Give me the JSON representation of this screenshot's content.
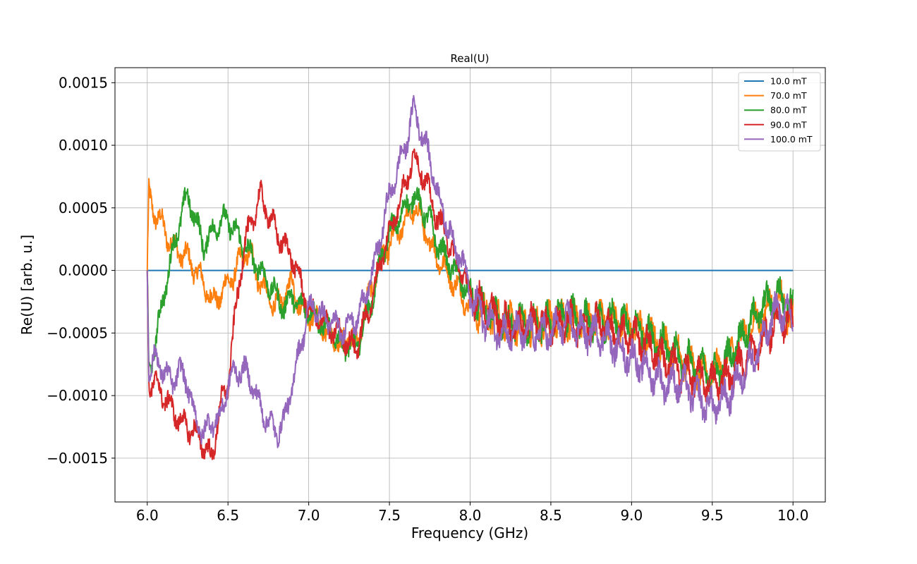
{
  "chart_data": {
    "type": "line",
    "title": "Real(U)",
    "xlabel": "Frequency (GHz)",
    "ylabel": "Re(U) [arb. u.]",
    "xlim": [
      5.8,
      10.2
    ],
    "ylim": [
      -0.00185,
      0.00162
    ],
    "xticks": [
      6.0,
      6.5,
      7.0,
      7.5,
      8.0,
      8.5,
      9.0,
      9.5,
      10.0
    ],
    "xtick_labels": [
      "6.0",
      "6.5",
      "7.0",
      "7.5",
      "8.0",
      "8.5",
      "9.0",
      "9.5",
      "10.0"
    ],
    "yticks": [
      0.0015,
      0.001,
      0.0005,
      0.0,
      -0.0005,
      -0.001,
      -0.0015
    ],
    "ytick_labels": [
      "0.0015",
      "0.0010",
      "0.0005",
      "0.0000",
      "−0.0005",
      "−0.0010",
      "−0.0015"
    ],
    "grid": true,
    "legend_position": "top-right",
    "series": [
      {
        "name": "10.0 mT",
        "color": "#1f77b4",
        "x": [
          6.0,
          10.0
        ],
        "y": [
          0.0,
          0.0
        ]
      },
      {
        "name": "70.0 mT",
        "color": "#ff7f0e",
        "x": [
          6.0,
          6.01,
          6.05,
          6.1,
          6.15,
          6.2,
          6.25,
          6.3,
          6.35,
          6.4,
          6.45,
          6.5,
          6.55,
          6.6,
          6.65,
          6.7,
          6.75,
          6.8,
          6.85,
          6.9,
          6.95,
          7.0,
          7.05,
          7.1,
          7.15,
          7.2,
          7.25,
          7.3,
          7.35,
          7.4,
          7.45,
          7.5,
          7.55,
          7.6,
          7.65,
          7.7,
          7.75,
          7.8,
          7.85,
          7.9,
          7.95,
          8.0,
          8.1,
          8.2,
          8.3,
          8.4,
          8.5,
          8.6,
          8.7,
          8.8,
          8.9,
          9.0,
          9.1,
          9.2,
          9.3,
          9.4,
          9.5,
          9.6,
          9.7,
          9.8,
          9.9,
          10.0
        ],
        "y": [
          0.0,
          0.0006,
          0.00045,
          0.00035,
          0.0002,
          0.00015,
          0.0001,
          0.0,
          -0.0001,
          -0.00025,
          -0.0002,
          -0.0001,
          0.0,
          0.00015,
          0.0001,
          -0.0001,
          -0.0002,
          -0.0003,
          -0.0002,
          -0.0001,
          -0.0003,
          -0.00035,
          -0.0004,
          -0.0005,
          -0.00055,
          -0.0006,
          -0.0005,
          -0.0006,
          -0.0003,
          -0.0001,
          0.0001,
          0.0002,
          0.0003,
          0.0004,
          0.0005,
          0.0004,
          0.0002,
          0.0001,
          0.0,
          -0.0001,
          -0.0002,
          -0.0003,
          -0.00035,
          -0.0004,
          -0.00045,
          -0.00045,
          -0.0004,
          -0.0004,
          -0.0004,
          -0.0004,
          -0.0004,
          -0.00045,
          -0.0005,
          -0.0006,
          -0.0007,
          -0.0008,
          -0.00085,
          -0.0007,
          -0.0005,
          -0.0004,
          -0.0002,
          -0.0004
        ]
      },
      {
        "name": "80.0 mT",
        "color": "#2ca02c",
        "x": [
          6.0,
          6.01,
          6.05,
          6.1,
          6.15,
          6.2,
          6.25,
          6.3,
          6.35,
          6.4,
          6.45,
          6.5,
          6.55,
          6.6,
          6.65,
          6.7,
          6.75,
          6.8,
          6.85,
          6.9,
          6.95,
          7.0,
          7.05,
          7.1,
          7.15,
          7.2,
          7.25,
          7.3,
          7.35,
          7.4,
          7.45,
          7.5,
          7.55,
          7.6,
          7.65,
          7.7,
          7.75,
          7.8,
          7.85,
          7.9,
          7.95,
          8.0,
          8.1,
          8.2,
          8.3,
          8.4,
          8.5,
          8.6,
          8.7,
          8.8,
          8.9,
          9.0,
          9.1,
          9.2,
          9.3,
          9.4,
          9.5,
          9.6,
          9.7,
          9.8,
          9.9,
          10.0
        ],
        "y": [
          0.0,
          -0.0008,
          -0.0006,
          -0.0002,
          0.0001,
          0.0004,
          0.0006,
          0.0004,
          0.0002,
          0.0003,
          0.0004,
          0.0004,
          0.0003,
          0.0002,
          0.0001,
          0.0,
          -0.0001,
          -0.0002,
          -0.0003,
          -0.0002,
          -0.0003,
          -0.0003,
          -0.0004,
          -0.00045,
          -0.0005,
          -0.0006,
          -0.0006,
          -0.0006,
          -0.0004,
          -0.0002,
          0.0001,
          0.0003,
          0.0004,
          0.0005,
          0.0006,
          0.0005,
          0.0004,
          0.0002,
          0.0001,
          0.0,
          -0.0001,
          -0.0002,
          -0.00035,
          -0.0004,
          -0.0004,
          -0.00045,
          -0.0004,
          -0.00035,
          -0.0004,
          -0.0004,
          -0.0004,
          -0.00045,
          -0.0005,
          -0.0006,
          -0.0007,
          -0.00075,
          -0.00085,
          -0.0007,
          -0.0005,
          -0.0003,
          -0.0002,
          -0.0003
        ]
      },
      {
        "name": "90.0 mT",
        "color": "#d62728",
        "x": [
          6.0,
          6.01,
          6.05,
          6.1,
          6.15,
          6.2,
          6.25,
          6.3,
          6.35,
          6.4,
          6.45,
          6.5,
          6.55,
          6.6,
          6.65,
          6.7,
          6.75,
          6.8,
          6.85,
          6.9,
          6.95,
          7.0,
          7.05,
          7.1,
          7.15,
          7.2,
          7.25,
          7.3,
          7.35,
          7.4,
          7.45,
          7.5,
          7.55,
          7.6,
          7.65,
          7.7,
          7.75,
          7.8,
          7.85,
          7.9,
          7.95,
          8.0,
          8.1,
          8.2,
          8.3,
          8.4,
          8.5,
          8.6,
          8.7,
          8.8,
          8.9,
          9.0,
          9.1,
          9.2,
          9.3,
          9.4,
          9.5,
          9.6,
          9.7,
          9.8,
          9.9,
          10.0
        ],
        "y": [
          0.0,
          -0.0009,
          -0.0009,
          -0.001,
          -0.0011,
          -0.0012,
          -0.00125,
          -0.0013,
          -0.0014,
          -0.0015,
          -0.0011,
          -0.0009,
          -0.0003,
          0.0002,
          0.0004,
          0.0006,
          0.00045,
          0.0003,
          0.0002,
          0.0001,
          -0.0001,
          -0.0003,
          -0.0004,
          -0.0004,
          -0.0005,
          -0.0005,
          -0.0006,
          -0.0006,
          -0.0004,
          -0.0002,
          0.0001,
          0.0003,
          0.0005,
          0.0007,
          0.0009,
          0.0008,
          0.0006,
          0.0004,
          0.0003,
          0.0001,
          0.0,
          -0.0002,
          -0.0003,
          -0.0004,
          -0.00045,
          -0.0004,
          -0.00045,
          -0.0004,
          -0.00045,
          -0.0004,
          -0.0005,
          -0.0005,
          -0.0006,
          -0.0007,
          -0.0008,
          -0.00085,
          -0.0009,
          -0.00085,
          -0.0007,
          -0.0006,
          -0.0004,
          -0.0004
        ]
      },
      {
        "name": "100.0 mT",
        "color": "#9467bd",
        "x": [
          6.0,
          6.01,
          6.05,
          6.1,
          6.15,
          6.2,
          6.25,
          6.3,
          6.35,
          6.4,
          6.45,
          6.5,
          6.55,
          6.6,
          6.65,
          6.7,
          6.75,
          6.8,
          6.85,
          6.9,
          6.95,
          7.0,
          7.05,
          7.1,
          7.15,
          7.2,
          7.25,
          7.3,
          7.35,
          7.4,
          7.45,
          7.5,
          7.55,
          7.6,
          7.65,
          7.7,
          7.75,
          7.8,
          7.85,
          7.9,
          7.95,
          8.0,
          8.1,
          8.2,
          8.3,
          8.4,
          8.5,
          8.6,
          8.7,
          8.8,
          8.9,
          9.0,
          9.1,
          9.2,
          9.3,
          9.4,
          9.5,
          9.6,
          9.7,
          9.8,
          9.9,
          10.0
        ],
        "y": [
          0.0,
          -0.0008,
          -0.0007,
          -0.0008,
          -0.0009,
          -0.0008,
          -0.0009,
          -0.0012,
          -0.0013,
          -0.0012,
          -0.0012,
          -0.0009,
          -0.0008,
          -0.0008,
          -0.0009,
          -0.0011,
          -0.0012,
          -0.0013,
          -0.0012,
          -0.0009,
          -0.0006,
          -0.0003,
          -0.0003,
          -0.0004,
          -0.0004,
          -0.0005,
          -0.0004,
          -0.0004,
          -0.0002,
          0.0,
          0.0003,
          0.0006,
          0.0008,
          0.001,
          0.0013,
          0.0011,
          0.0009,
          0.0006,
          0.0004,
          0.0002,
          0.0001,
          -0.0002,
          -0.0004,
          -0.0005,
          -0.0005,
          -0.0005,
          -0.0005,
          -0.0004,
          -0.0005,
          -0.0005,
          -0.0006,
          -0.0007,
          -0.0008,
          -0.0009,
          -0.0009,
          -0.001,
          -0.0011,
          -0.001,
          -0.0008,
          -0.0006,
          -0.0003,
          -0.0004
        ]
      }
    ]
  }
}
